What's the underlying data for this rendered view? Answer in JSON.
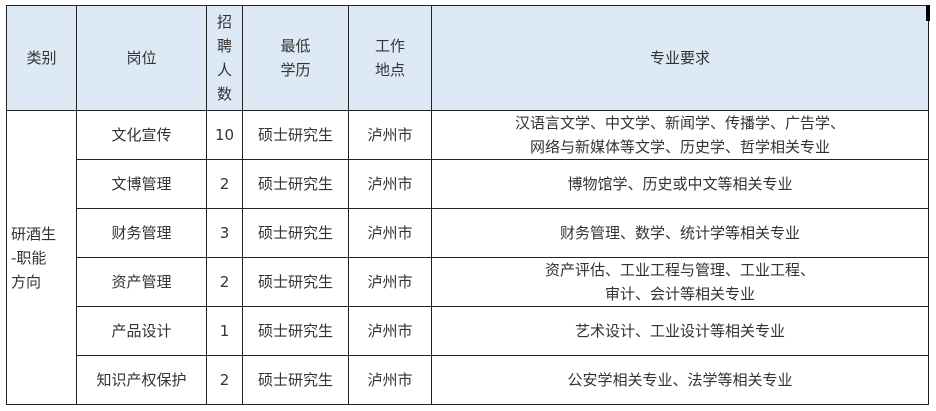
{
  "header": {
    "category": "类别",
    "position": "岗位",
    "count": "招\n聘\n人\n数",
    "education": "最低\n学历",
    "location": "工作\n地点",
    "major": "专业要求"
  },
  "category_group": "研酒生\n-职能\n方向",
  "rows": [
    {
      "position": "文化宣传",
      "count": "10",
      "education": "硕士研究生",
      "location": "泸州市",
      "major": "汉语言文学、中文学、新闻学、传播学、广告学、\n网络与新媒体等文学、历史学、哲学相关专业"
    },
    {
      "position": "文博管理",
      "count": "2",
      "education": "硕士研究生",
      "location": "泸州市",
      "major": "博物馆学、历史或中文等相关专业"
    },
    {
      "position": "财务管理",
      "count": "3",
      "education": "硕士研究生",
      "location": "泸州市",
      "major": "财务管理、数学、统计学等相关专业"
    },
    {
      "position": "资产管理",
      "count": "2",
      "education": "硕士研究生",
      "location": "泸州市",
      "major": "资产评估、工业工程与管理、工业工程、\n审计、会计等相关专业"
    },
    {
      "position": "产品设计",
      "count": "1",
      "education": "硕士研究生",
      "location": "泸州市",
      "major": "艺术设计、工业设计等相关专业"
    },
    {
      "position": "知识产权保护",
      "count": "2",
      "education": "硕士研究生",
      "location": "泸州市",
      "major": "公安学相关专业、法学等相关专业"
    }
  ]
}
